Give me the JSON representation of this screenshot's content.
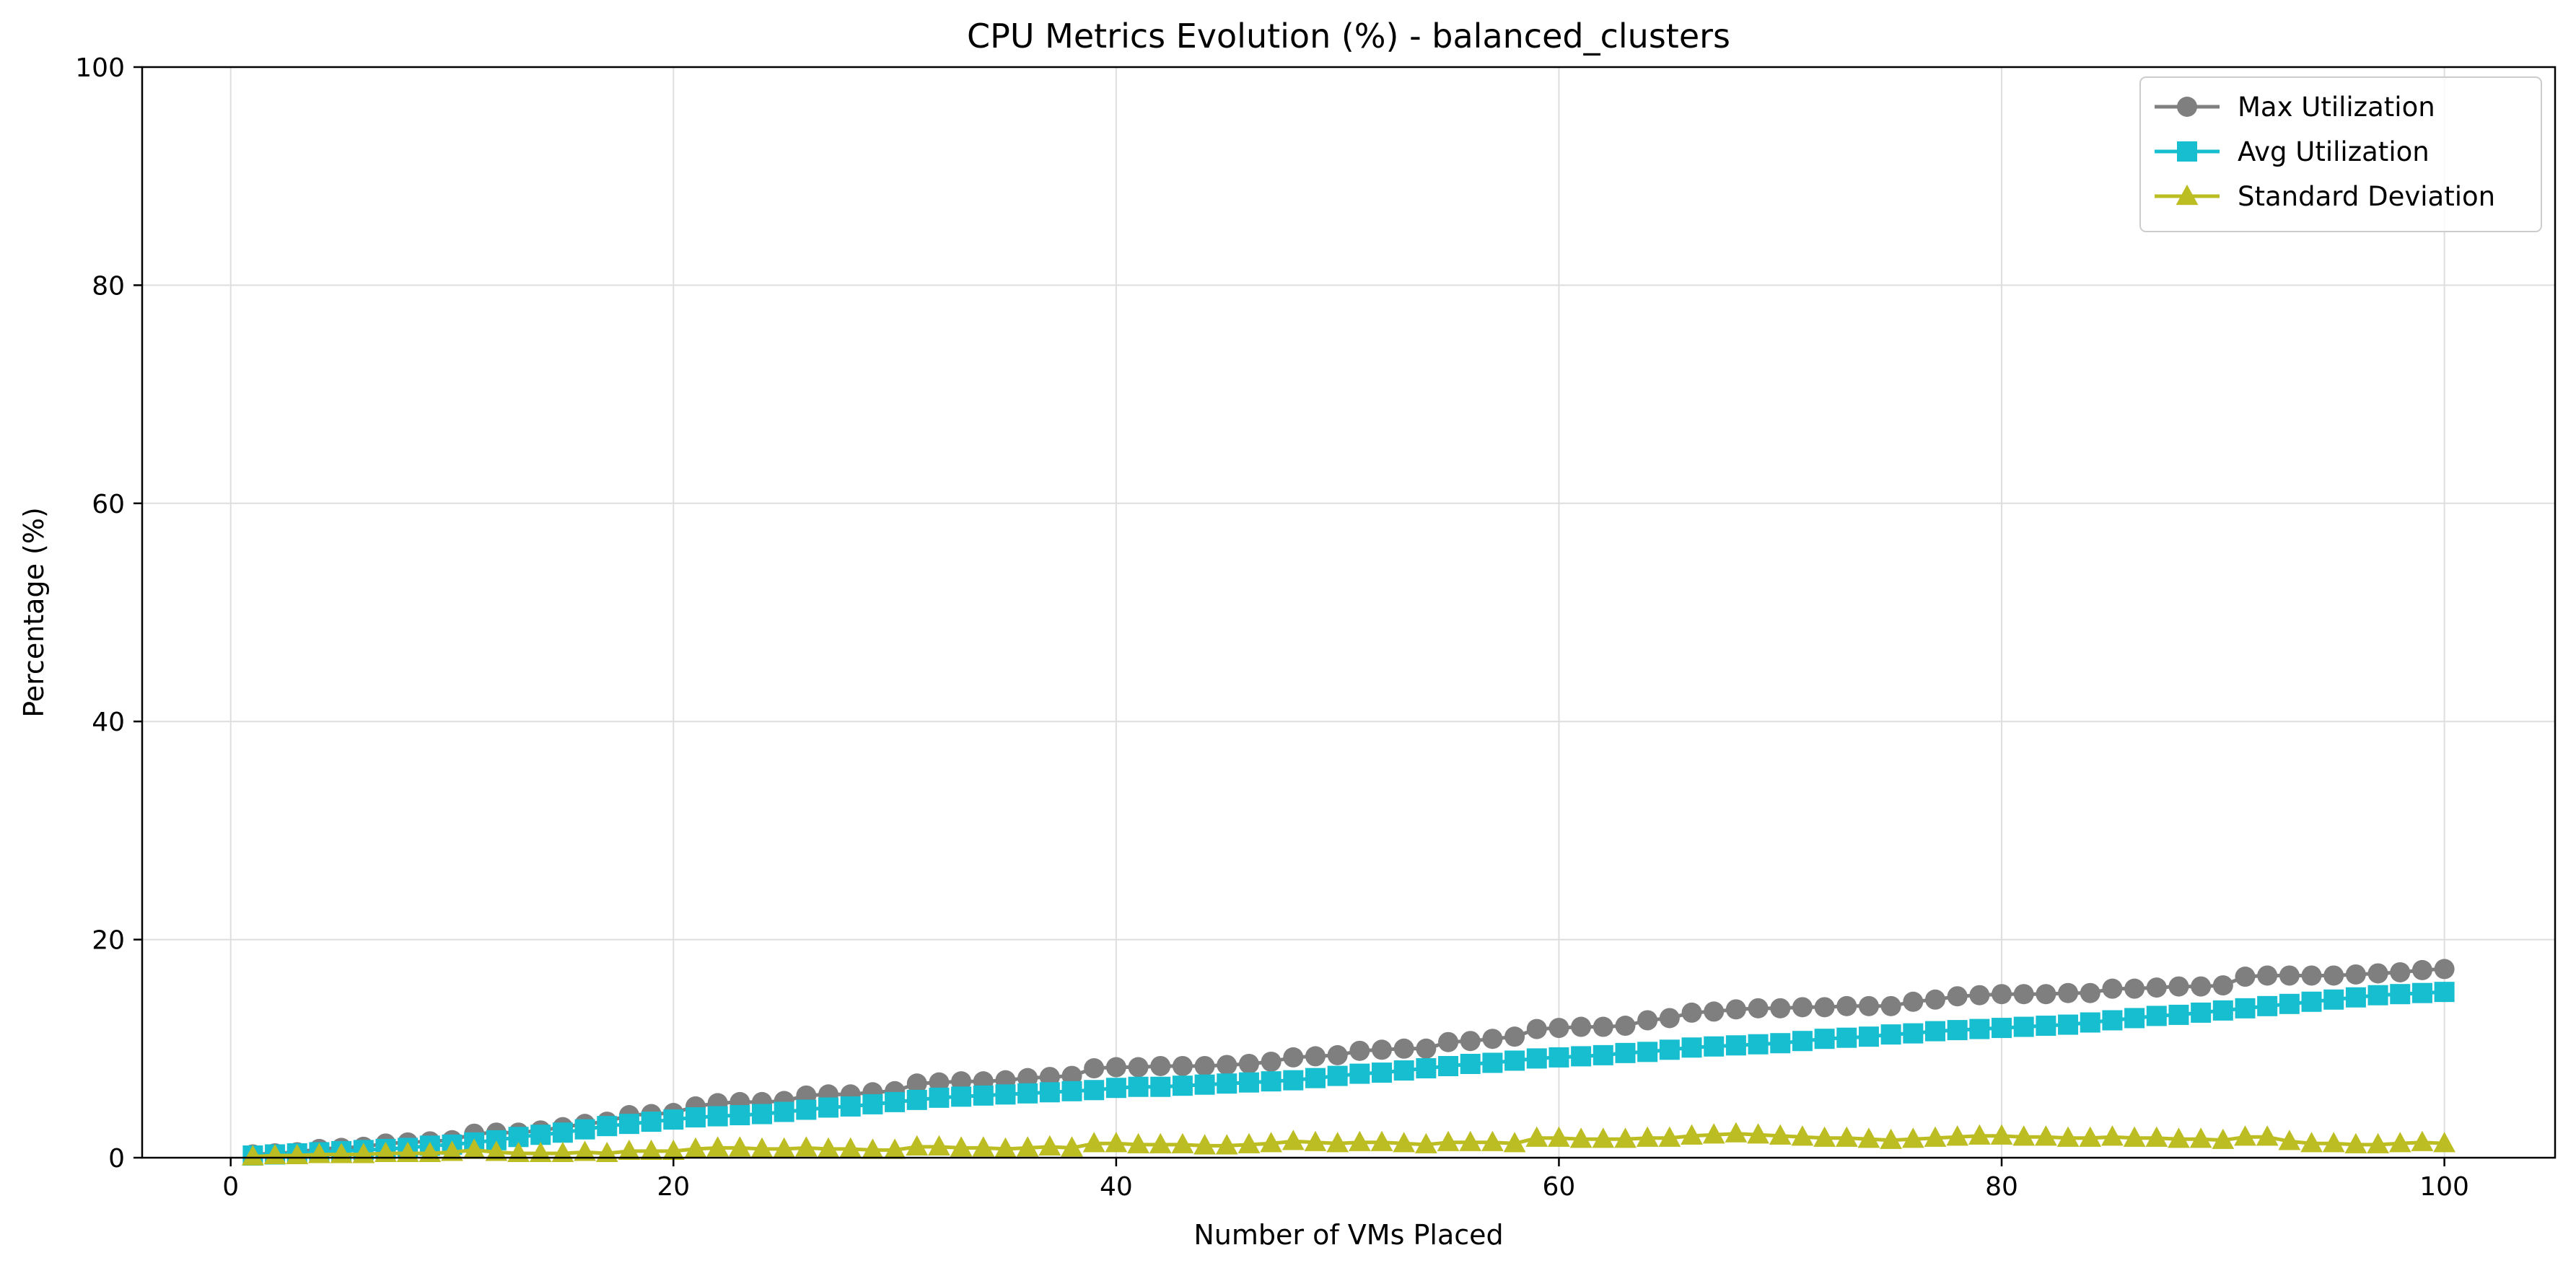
{
  "chart_data": {
    "type": "line",
    "title": "CPU Metrics Evolution (%) - balanced_clusters",
    "xlabel": "Number of VMs Placed",
    "ylabel": "Percentage (%)",
    "xlim": [
      -4,
      105
    ],
    "ylim": [
      0,
      100
    ],
    "xticks": [
      0,
      20,
      40,
      60,
      80,
      100
    ],
    "yticks": [
      0,
      20,
      40,
      60,
      80,
      100
    ],
    "grid": true,
    "legend_position": "top-right",
    "x": [
      1,
      2,
      3,
      4,
      5,
      6,
      7,
      8,
      9,
      10,
      11,
      12,
      13,
      14,
      15,
      16,
      17,
      18,
      19,
      20,
      21,
      22,
      23,
      24,
      25,
      26,
      27,
      28,
      29,
      30,
      31,
      32,
      33,
      34,
      35,
      36,
      37,
      38,
      39,
      40,
      41,
      42,
      43,
      44,
      45,
      46,
      47,
      48,
      49,
      50,
      51,
      52,
      53,
      54,
      55,
      56,
      57,
      58,
      59,
      60,
      61,
      62,
      63,
      64,
      65,
      66,
      67,
      68,
      69,
      70,
      71,
      72,
      73,
      74,
      75,
      76,
      77,
      78,
      79,
      80,
      81,
      82,
      83,
      84,
      85,
      86,
      87,
      88,
      89,
      90,
      91,
      92,
      93,
      94,
      95,
      96,
      97,
      98,
      99,
      100
    ],
    "series": [
      {
        "name": "Max Utilization",
        "color": "#7f7f7f",
        "marker": "circle",
        "values": [
          0.3,
          0.4,
          0.5,
          0.8,
          0.9,
          1.0,
          1.3,
          1.4,
          1.5,
          1.6,
          2.2,
          2.3,
          2.3,
          2.5,
          2.8,
          3.1,
          3.3,
          3.9,
          4.0,
          4.1,
          4.7,
          5.0,
          5.1,
          5.1,
          5.2,
          5.7,
          5.8,
          5.8,
          6.0,
          6.1,
          6.8,
          6.9,
          7.0,
          7.0,
          7.1,
          7.3,
          7.4,
          7.5,
          8.2,
          8.3,
          8.3,
          8.4,
          8.4,
          8.4,
          8.5,
          8.6,
          8.8,
          9.2,
          9.3,
          9.4,
          9.8,
          9.9,
          10.0,
          10.0,
          10.6,
          10.7,
          10.9,
          11.1,
          11.8,
          11.9,
          12.0,
          12.0,
          12.1,
          12.6,
          12.8,
          13.3,
          13.4,
          13.6,
          13.7,
          13.7,
          13.8,
          13.8,
          13.9,
          13.9,
          13.9,
          14.3,
          14.5,
          14.8,
          14.9,
          15.0,
          15.0,
          15.0,
          15.1,
          15.1,
          15.5,
          15.5,
          15.6,
          15.7,
          15.7,
          15.8,
          16.6,
          16.7,
          16.7,
          16.7,
          16.7,
          16.8,
          16.9,
          17.0,
          17.2,
          17.3
        ]
      },
      {
        "name": "Avg Utilization",
        "color": "#17becf",
        "marker": "square",
        "values": [
          0.2,
          0.3,
          0.4,
          0.5,
          0.6,
          0.7,
          0.8,
          0.9,
          1.1,
          1.2,
          1.4,
          1.6,
          1.9,
          2.1,
          2.3,
          2.6,
          2.9,
          3.1,
          3.3,
          3.5,
          3.7,
          3.8,
          3.9,
          4.0,
          4.2,
          4.4,
          4.6,
          4.7,
          4.9,
          5.1,
          5.3,
          5.5,
          5.6,
          5.7,
          5.8,
          5.9,
          6.0,
          6.1,
          6.2,
          6.4,
          6.5,
          6.5,
          6.6,
          6.7,
          6.8,
          6.9,
          7.0,
          7.1,
          7.3,
          7.5,
          7.7,
          7.8,
          8.0,
          8.2,
          8.4,
          8.6,
          8.7,
          8.9,
          9.1,
          9.2,
          9.3,
          9.4,
          9.6,
          9.7,
          9.9,
          10.1,
          10.2,
          10.3,
          10.4,
          10.5,
          10.7,
          10.9,
          11.0,
          11.1,
          11.3,
          11.4,
          11.6,
          11.7,
          11.8,
          11.9,
          12.0,
          12.1,
          12.2,
          12.4,
          12.6,
          12.8,
          13.0,
          13.1,
          13.3,
          13.5,
          13.7,
          13.9,
          14.1,
          14.3,
          14.5,
          14.7,
          14.9,
          15.0,
          15.1,
          15.2
        ]
      },
      {
        "name": "Standard Deviation",
        "color": "#bcbd22",
        "marker": "triangle",
        "values": [
          0.1,
          0.2,
          0.2,
          0.3,
          0.3,
          0.3,
          0.4,
          0.4,
          0.4,
          0.5,
          0.7,
          0.5,
          0.4,
          0.4,
          0.4,
          0.5,
          0.4,
          0.6,
          0.6,
          0.6,
          0.8,
          0.9,
          0.9,
          0.8,
          0.8,
          0.9,
          0.8,
          0.8,
          0.7,
          0.7,
          1.0,
          1.0,
          0.9,
          0.9,
          0.8,
          0.9,
          1.0,
          0.9,
          1.3,
          1.3,
          1.2,
          1.2,
          1.2,
          1.1,
          1.1,
          1.2,
          1.3,
          1.5,
          1.4,
          1.3,
          1.4,
          1.4,
          1.3,
          1.2,
          1.4,
          1.4,
          1.4,
          1.3,
          1.8,
          1.8,
          1.7,
          1.7,
          1.7,
          1.8,
          1.8,
          2.0,
          2.1,
          2.2,
          2.1,
          2.0,
          1.9,
          1.8,
          1.8,
          1.7,
          1.6,
          1.7,
          1.8,
          1.9,
          2.0,
          2.0,
          1.9,
          1.9,
          1.8,
          1.8,
          1.9,
          1.8,
          1.8,
          1.7,
          1.7,
          1.6,
          1.9,
          1.9,
          1.5,
          1.3,
          1.3,
          1.2,
          1.2,
          1.3,
          1.4,
          1.3
        ]
      }
    ]
  }
}
